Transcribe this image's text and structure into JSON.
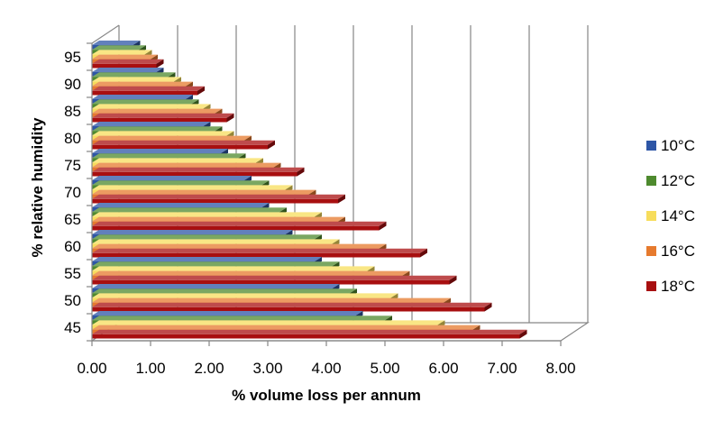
{
  "chart_data": {
    "type": "bar",
    "orientation": "horizontal",
    "style": "3d-clustered",
    "categories": [
      "45",
      "50",
      "55",
      "60",
      "65",
      "70",
      "75",
      "80",
      "85",
      "90",
      "95"
    ],
    "series": [
      {
        "name": "10°C",
        "color": "#2E56A6",
        "values": [
          4.5,
          4.1,
          3.8,
          3.3,
          2.9,
          2.6,
          2.2,
          1.9,
          1.6,
          1.1,
          0.7
        ]
      },
      {
        "name": "12°C",
        "color": "#4E8A2E",
        "values": [
          5.0,
          4.4,
          4.1,
          3.8,
          3.2,
          2.9,
          2.5,
          2.1,
          1.7,
          1.3,
          0.8
        ]
      },
      {
        "name": "14°C",
        "color": "#F7DD5C",
        "values": [
          5.9,
          5.1,
          4.7,
          4.1,
          3.8,
          3.3,
          2.8,
          2.3,
          1.9,
          1.4,
          0.9
        ]
      },
      {
        "name": "16°C",
        "color": "#E67A2E",
        "values": [
          6.5,
          6.0,
          5.3,
          4.9,
          4.2,
          3.7,
          3.1,
          2.6,
          2.1,
          1.6,
          1.0
        ]
      },
      {
        "name": "18°C",
        "color": "#A80F10",
        "values": [
          7.3,
          6.7,
          6.1,
          5.6,
          4.9,
          4.2,
          3.5,
          3.0,
          2.3,
          1.8,
          1.1
        ]
      }
    ],
    "xlabel": "% volume loss per annum",
    "ylabel": "% relative humidity",
    "xlim": [
      0,
      8
    ],
    "x_ticks": [
      "0.00",
      "1.00",
      "2.00",
      "3.00",
      "4.00",
      "5.00",
      "6.00",
      "7.00",
      "8.00"
    ],
    "grid": true,
    "legend_position": "right"
  }
}
